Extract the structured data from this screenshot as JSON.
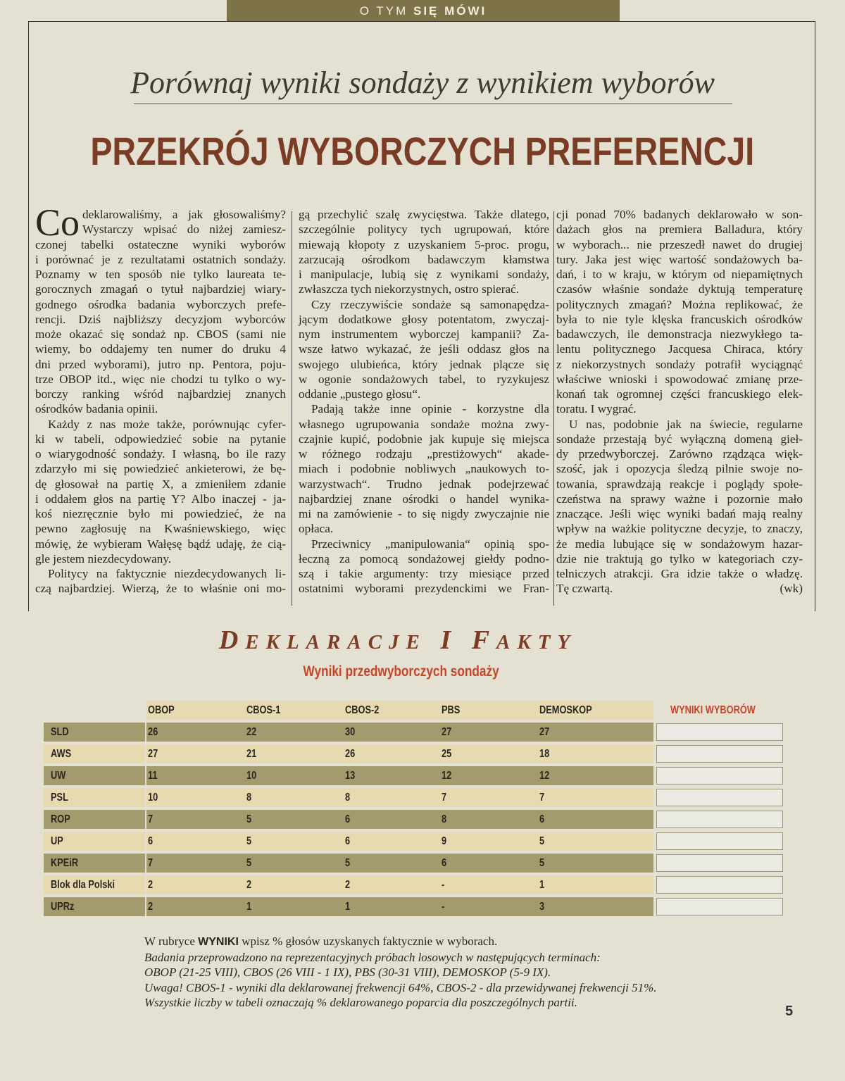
{
  "section_label": {
    "pre": "O TYM ",
    "bold": "SIĘ MÓWI"
  },
  "subtitle": "Porównaj wyniki sondaży z wynikiem wyborów",
  "title": "PRZEKRÓJ WYBORCZYCH PREFERENCJI",
  "article": {
    "drop_cap": "Co",
    "columns": [
      [
        {
          "lines": [
            "deklarowaliśmy, a jak głosowaliśmy?",
            "Wystarczy wpisać do niżej zamiesz-",
            "czonej tabelki ostateczne wyniki wyborów",
            "i porównać je z rezultatami ostatnich sondaży.",
            "Poznamy w ten sposób nie tylko laureata te-",
            "gorocznych zmagań o tytuł najbardziej wiary-",
            "godnego ośrodka badania wyborczych prefe-",
            "rencji. Dziś najbliższy decyzjom wyborców",
            "może okazać się sondaż np. CBOS (sami nie",
            "wiemy, bo oddajemy ten numer do druku 4",
            "dni przed wyborami), jutro np. Pentora, poju-",
            "trze OBOP itd., więc nie chodzi tu tylko o wy-",
            "borczy ranking wśród najbardziej znanych",
            "ośrodków badania opinii."
          ]
        },
        {
          "lines": [
            "Każdy z nas może także, porównując cyfer-",
            "ki w tabeli, odpowiedzieć sobie na pytanie",
            "o wiarygodność sondaży. I własną, bo ile razy",
            "zdarzyło mi się powiedzieć ankieterowi, że bę-",
            "dę głosował na partię X, a zmieniłem zdanie",
            "i oddałem głos na partię Y? Albo inaczej - ja-",
            "koś niezręcznie było mi powiedzieć, że na",
            "pewno zagłosuję na Kwaśniewskiego, więc",
            "mówię, że wybieram Wałęsę bądź udaję, że cią-",
            "gle jestem niezdecydowany."
          ]
        },
        {
          "lines": [
            "Politycy na faktycznie niezdecydowanych li-",
            "czą najbardziej. Wierzą, że to właśnie oni mo-"
          ],
          "cont": true
        }
      ],
      [
        {
          "lines": [
            "gą przechylić szalę zwycięstwa. Także dlatego,",
            "szczególnie politycy tych ugrupowań, które",
            "miewają kłopoty z uzyskaniem 5-proc. progu,",
            "zarzucają ośrodkom badawczym kłamstwa",
            "i manipulacje, lubią się z wynikami sondaży,",
            "zwłaszcza tych niekorzystnych, ostro spierać."
          ]
        },
        {
          "lines": [
            "Czy rzeczywiście sondaże są samonapędza-",
            "jącym dodatkowe głosy potentatom, zwyczaj-",
            "nym instrumentem wyborczej kampanii? Za-",
            "wsze łatwo wykazać, że jeśli oddasz głos na",
            "swojego ulubieńca, który jednak plącze się",
            "w ogonie sondażowych tabel, to ryzykujesz",
            "oddanie „pustego głosu“."
          ]
        },
        {
          "lines": [
            "Padają także inne opinie - korzystne dla",
            "własnego ugrupowania sondaże można zwy-",
            "czajnie kupić, podobnie jak kupuje się miejsca",
            "w różnego rodzaju „prestiżowych“ akade-",
            "miach i podobnie nobliwych „naukowych to-",
            "warzystwach“. Trudno jednak podejrzewać",
            "najbardziej znane ośrodki o handel wynika-",
            "mi na zamówienie - to się nigdy zwyczajnie nie",
            "opłaca."
          ]
        },
        {
          "lines": [
            "Przeciwnicy „manipulowania“ opinią spo-",
            "łeczną za pomocą sondażowej giełdy podno-",
            "szą i takie argumenty: trzy miesiące przed",
            "ostatnimi wyborami prezydenckimi we Fran-"
          ],
          "cont": true
        }
      ],
      [
        {
          "lines": [
            "cji ponad 70% badanych deklarowało w son-",
            "dażach głos na premiera Balladura, który",
            "w wyborach... nie przeszedł nawet do drugiej",
            "tury. Jaka jest więc wartość sondażowych ba-",
            "dań, i to w kraju, w którym od niepamiętnych",
            "czasów właśnie sondaże dyktują temperaturę",
            "politycznych zmagań? Można replikować, że",
            "była to nie tyle klęska francuskich ośrodków",
            "badawczych, ile demonstracja niezwykłego ta-",
            "lentu politycznego Jacquesa Chiraca, który",
            "z niekorzystnych sondaży potrafił wyciągnąć",
            "właściwe wnioski i spowodować zmianę prze-",
            "konań tak ogromnej części francuskiego elek-",
            "toratu. I wygrać."
          ]
        },
        {
          "lines": [
            "U nas, podobnie jak na świecie, regularne",
            "sondaże przestają być wyłączną domeną gieł-",
            "dy przedwyborczej. Zarówno rządząca więk-",
            "szość, jak i opozycja śledzą pilnie swoje no-",
            "towania, sprawdzają reakcje i poglądy społe-",
            "czeństwa na sprawy ważne i pozornie mało",
            "znaczące. Jeśli więc wyniki badań mają realny",
            "wpływ na ważkie polityczne decyzje, to znaczy,",
            "że media lubujące się w sondażowym hazar-",
            "dzie nie traktują go tylko w kategoriach czy-",
            "telniczych atrakcji. Gra idzie także o władzę.",
            "Tę czwartą."
          ]
        }
      ]
    ],
    "signature": "(wk)"
  },
  "table_section": {
    "heading": "Deklaracje i Fakty",
    "subheading": "Wyniki przedwyborczych sondaży",
    "columns": [
      "OBOP",
      "CBOS-1",
      "CBOS-2",
      "PBS",
      "DEMOSKOP"
    ],
    "results_header": "WYNIKI WYBORÓW",
    "rows": [
      {
        "party": "SLD",
        "values": [
          "26",
          "22",
          "30",
          "27",
          "27"
        ]
      },
      {
        "party": "AWS",
        "values": [
          "27",
          "21",
          "26",
          "25",
          "18"
        ]
      },
      {
        "party": "UW",
        "values": [
          "11",
          "10",
          "13",
          "12",
          "12"
        ]
      },
      {
        "party": "PSL",
        "values": [
          "10",
          "8",
          "8",
          "7",
          "7"
        ]
      },
      {
        "party": "ROP",
        "values": [
          "7",
          "5",
          "6",
          "8",
          "6"
        ]
      },
      {
        "party": "UP",
        "values": [
          "6",
          "5",
          "6",
          "9",
          "5"
        ]
      },
      {
        "party": "KPEiR",
        "values": [
          "7",
          "5",
          "5",
          "6",
          "5"
        ]
      },
      {
        "party": "Blok dla Polski",
        "values": [
          "2",
          "2",
          "2",
          "-",
          "1"
        ]
      },
      {
        "party": "UPRz",
        "values": [
          "2",
          "1",
          "1",
          "-",
          "3"
        ]
      }
    ]
  },
  "notes": {
    "line1_pre": "W rubryce ",
    "line1_bold": "WYNIKI",
    "line1_post": " wpisz % głosów uzyskanych faktycznie w wyborach.",
    "italic_lines": [
      "Badania przeprowadzono na reprezentacyjnych próbach losowych w następujących terminach:",
      "OBOP (21-25 VIII), CBOS (26 VIII - 1 IX), PBS (30-31 VIII), DEMOSKOP (5-9 IX).",
      "Uwaga! CBOS-1 - wyniki dla deklarowanej frekwencji 64%, CBOS-2 - dla przewidywanej frekwencji 51%.",
      "Wszystkie liczby w tabeli oznaczają % deklarowanego poparcia dla poszczególnych partii."
    ]
  },
  "page_number": "5",
  "colors": {
    "section_bar": "#7d7248",
    "title": "#7a3c24",
    "accent_red": "#c8452a",
    "row_dark": "#a39a6d",
    "row_light": "#e8dab0",
    "paper": "#e4e1d3"
  }
}
